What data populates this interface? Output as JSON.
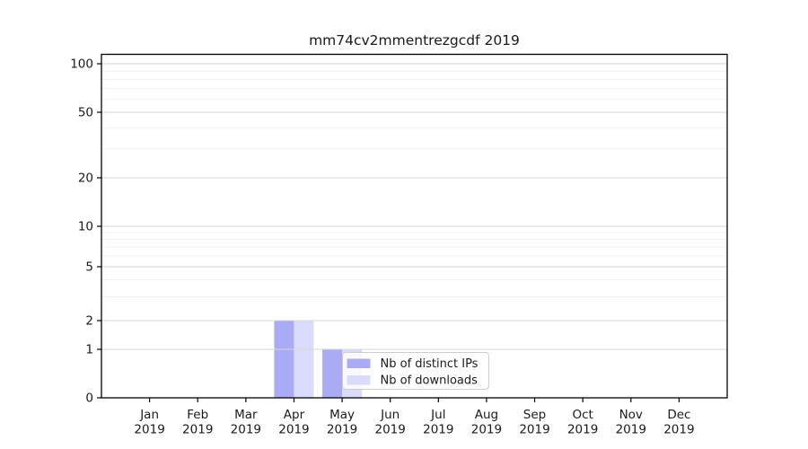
{
  "title": "mm74cv2mmentrezgcdf 2019",
  "chart_data": {
    "type": "bar",
    "title": "mm74cv2mmentrezgcdf 2019",
    "categories": [
      "Jan",
      "Feb",
      "Mar",
      "Apr",
      "May",
      "Jun",
      "Jul",
      "Aug",
      "Sep",
      "Oct",
      "Nov",
      "Dec"
    ],
    "category_year": "2019",
    "series": [
      {
        "name": "Nb of distinct IPs",
        "color": "#aaaaf5",
        "values": [
          0,
          0,
          0,
          2,
          1,
          0,
          0,
          0,
          0,
          0,
          0,
          0
        ]
      },
      {
        "name": "Nb of downloads",
        "color": "#dadafa",
        "values": [
          0,
          0,
          0,
          2,
          1,
          0,
          0,
          0,
          0,
          0,
          0,
          0
        ]
      }
    ],
    "xlabel": "",
    "ylabel": "",
    "y_axis": {
      "scale": "log-like",
      "ticks": [
        0,
        1,
        2,
        5,
        10,
        20,
        50,
        100
      ],
      "minor_ticks": [
        3,
        4,
        6,
        7,
        8,
        9,
        30,
        40,
        60,
        70,
        80,
        90
      ],
      "ylim": [
        0,
        110
      ]
    },
    "grid": true,
    "legend": {
      "position": "lower center",
      "entries": [
        {
          "label": "Nb of distinct IPs",
          "color": "#aaaaf5"
        },
        {
          "label": "Nb of downloads",
          "color": "#dadafa"
        }
      ]
    },
    "colors": {
      "major_grid": "#d6d6d6",
      "minor_grid": "#f1f1f1",
      "axis": "#000000",
      "text": "#1a1a1a",
      "legend_border": "#cccccc"
    }
  }
}
